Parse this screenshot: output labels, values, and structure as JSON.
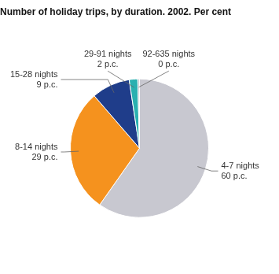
{
  "chart_data": {
    "type": "pie",
    "title": "Number of holiday trips, by duration. 2002. Per cent",
    "categories": [
      "4-7 nights\n60 p.c.",
      "8-14 nights\n29 p.c.",
      "15-28 nights\n9 p.c.",
      "29-91 nights\n2 p.c.",
      "92-635 nights\n0 p.c."
    ],
    "values": [
      60,
      29,
      9,
      2,
      0.4
    ],
    "colors": [
      "#c8c8d0",
      "#f5921e",
      "#1f3d8a",
      "#2ab0b0",
      "#c8c8d0"
    ]
  }
}
